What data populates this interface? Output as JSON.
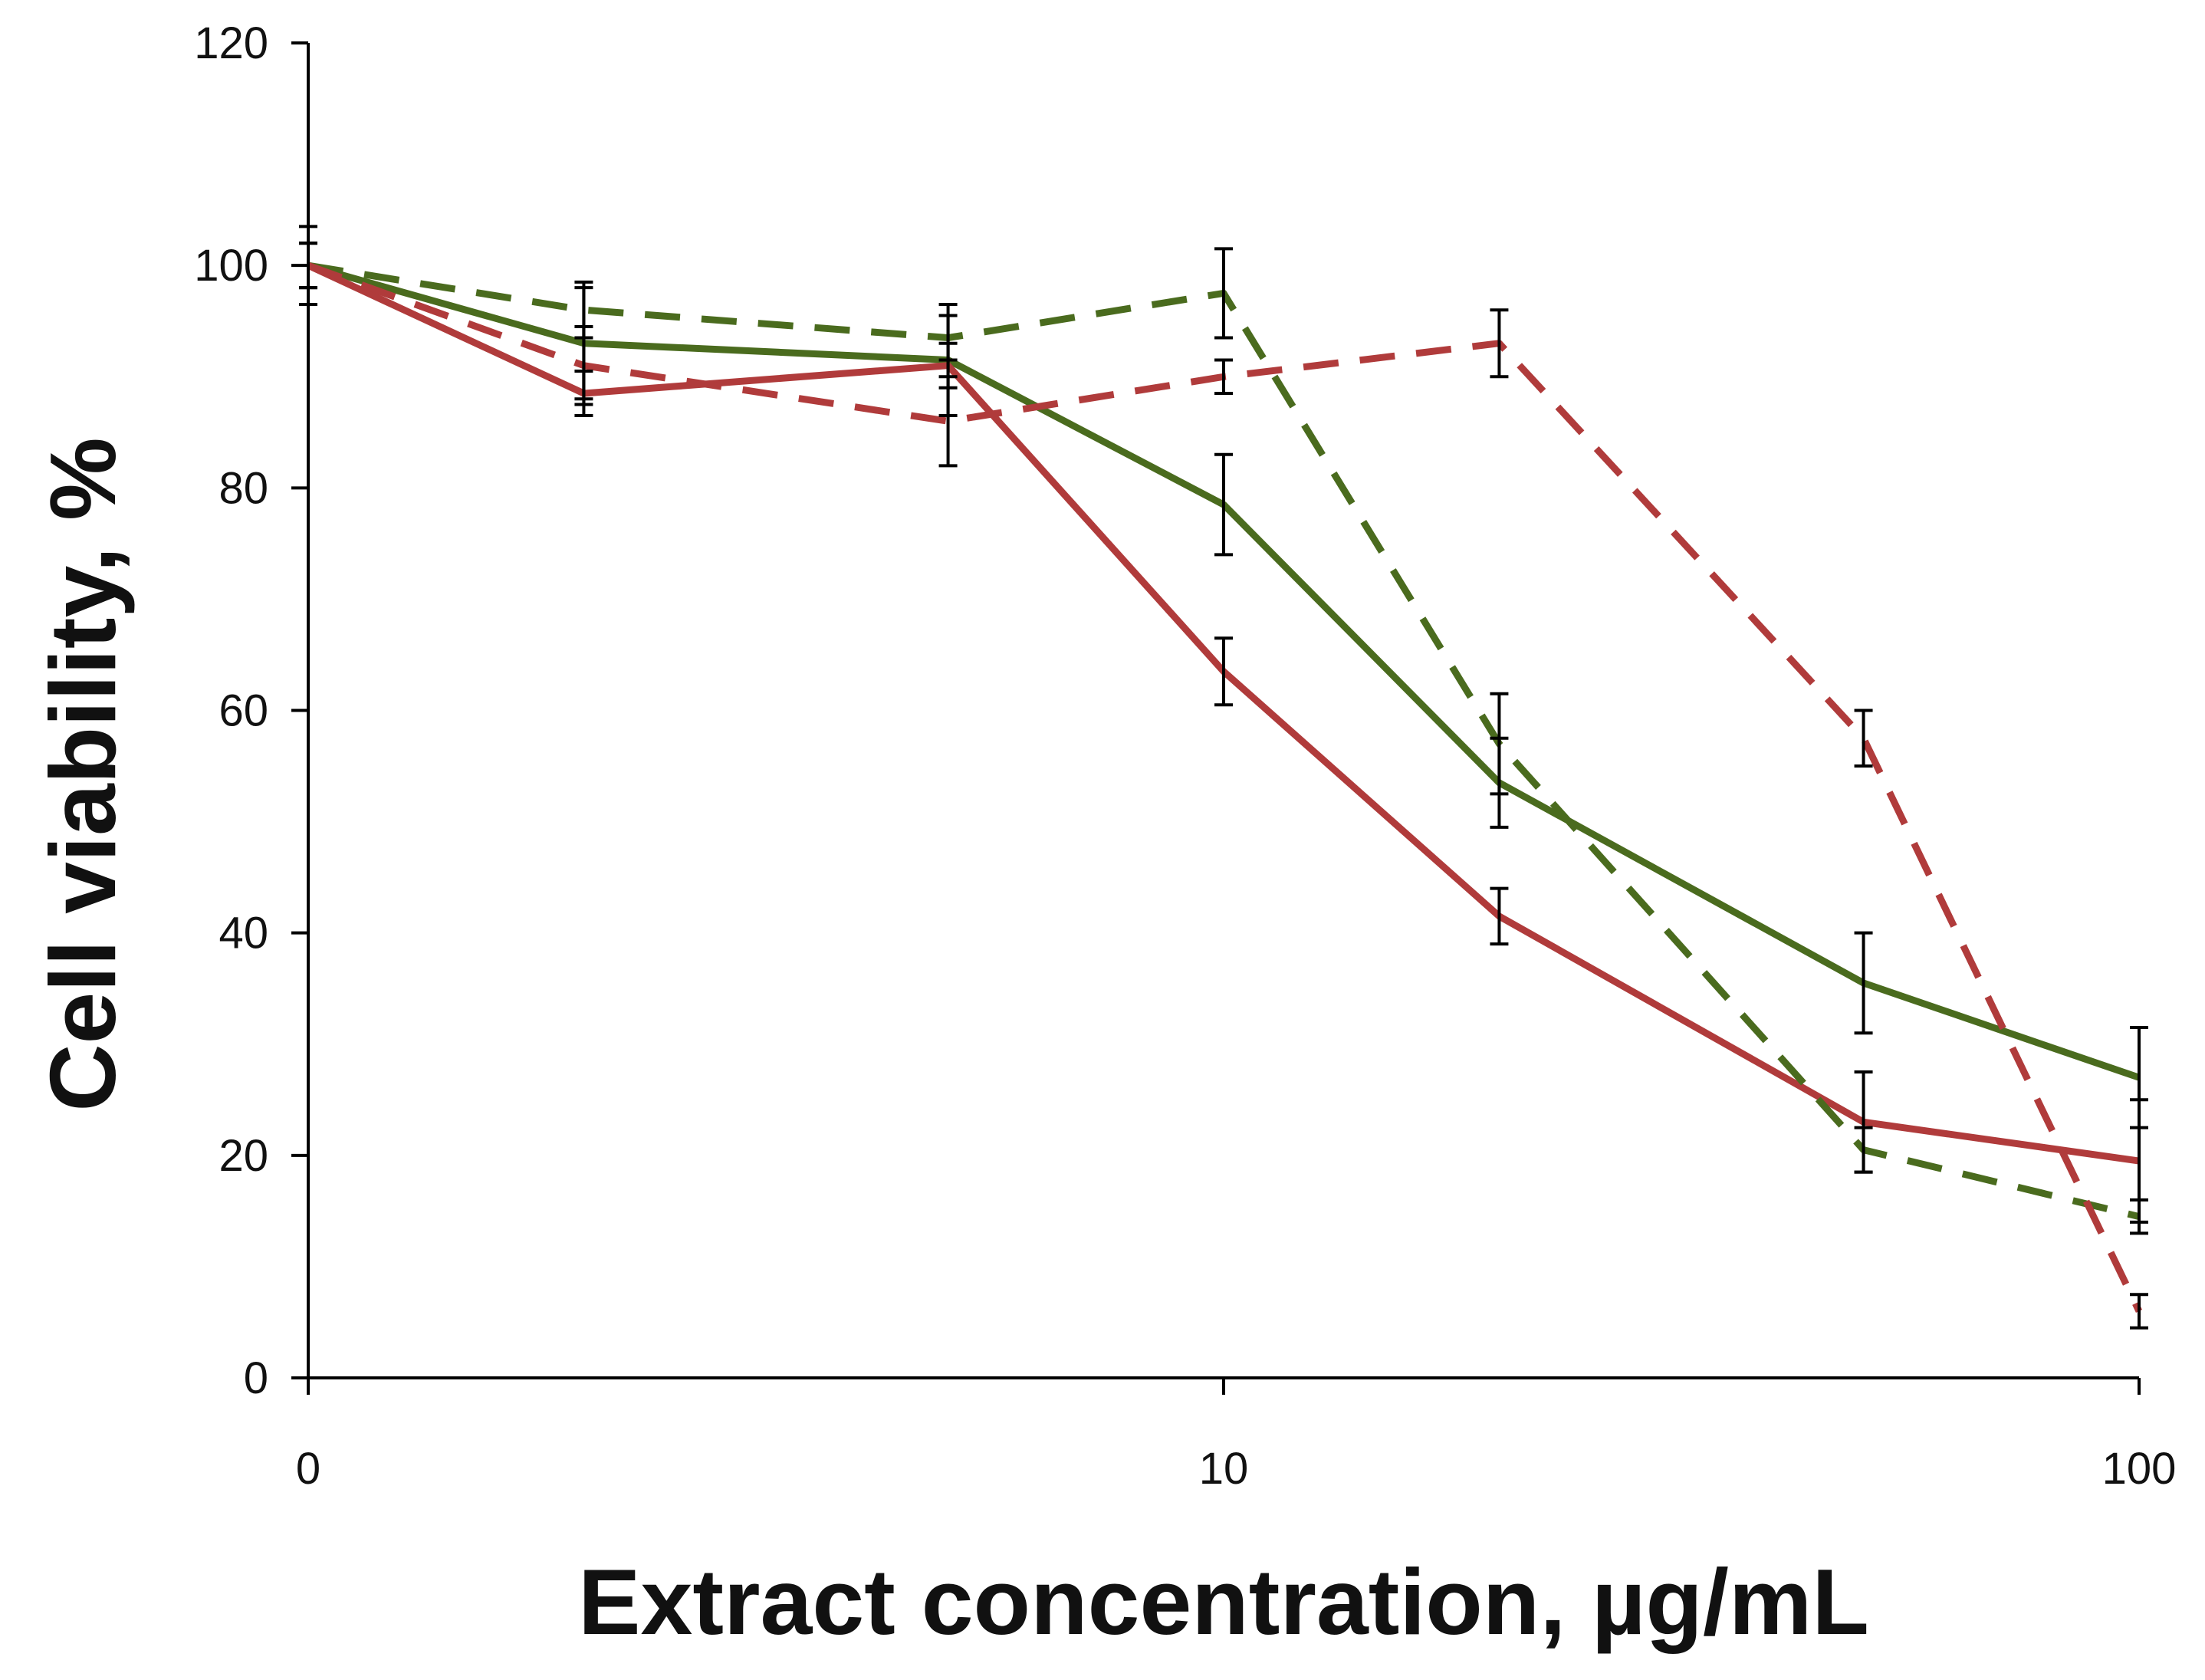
{
  "chart_data": {
    "type": "line",
    "title": "",
    "xlabel": "Extract concentration, µg/mL",
    "ylabel": "Cell viability, %",
    "xscale": "log",
    "xlim": [
      1,
      100
    ],
    "ylim": [
      0,
      120
    ],
    "xticks": [
      {
        "value": 1,
        "label": "0"
      },
      {
        "value": 10,
        "label": "10"
      },
      {
        "value": 100,
        "label": "100"
      }
    ],
    "yticks": [
      0,
      20,
      40,
      60,
      80,
      100,
      120
    ],
    "x": [
      1,
      2,
      5,
      10,
      20,
      50,
      100
    ],
    "series": [
      {
        "name": "solid green",
        "color": "#4a6b1e",
        "dash": "solid",
        "values": [
          100,
          93,
          91.5,
          78.5,
          53.5,
          35.5,
          27
        ],
        "errors": [
          3.5,
          5,
          5,
          4.5,
          4,
          4.5,
          4.5
        ]
      },
      {
        "name": "solid red",
        "color": "#b03b3b",
        "dash": "solid",
        "values": [
          100,
          88.5,
          91,
          63.5,
          41.5,
          23,
          19.5
        ],
        "errors": [
          2,
          2,
          2,
          3,
          2.5,
          4.5,
          5.5
        ]
      },
      {
        "name": "dashed green",
        "color": "#4a6b1e",
        "dash": "dashed",
        "values": [
          100,
          96,
          93.5,
          97.5,
          57,
          20.5,
          14.5
        ],
        "errors": [
          2,
          2.5,
          2,
          4,
          4.5,
          2,
          1.5
        ]
      },
      {
        "name": "dashed red",
        "color": "#b03b3b",
        "dash": "dashed",
        "values": [
          100,
          91,
          86,
          90,
          93,
          57.5,
          6
        ],
        "errors": [
          2,
          3.5,
          4,
          1.5,
          3,
          2.5,
          1.5
        ]
      }
    ]
  }
}
